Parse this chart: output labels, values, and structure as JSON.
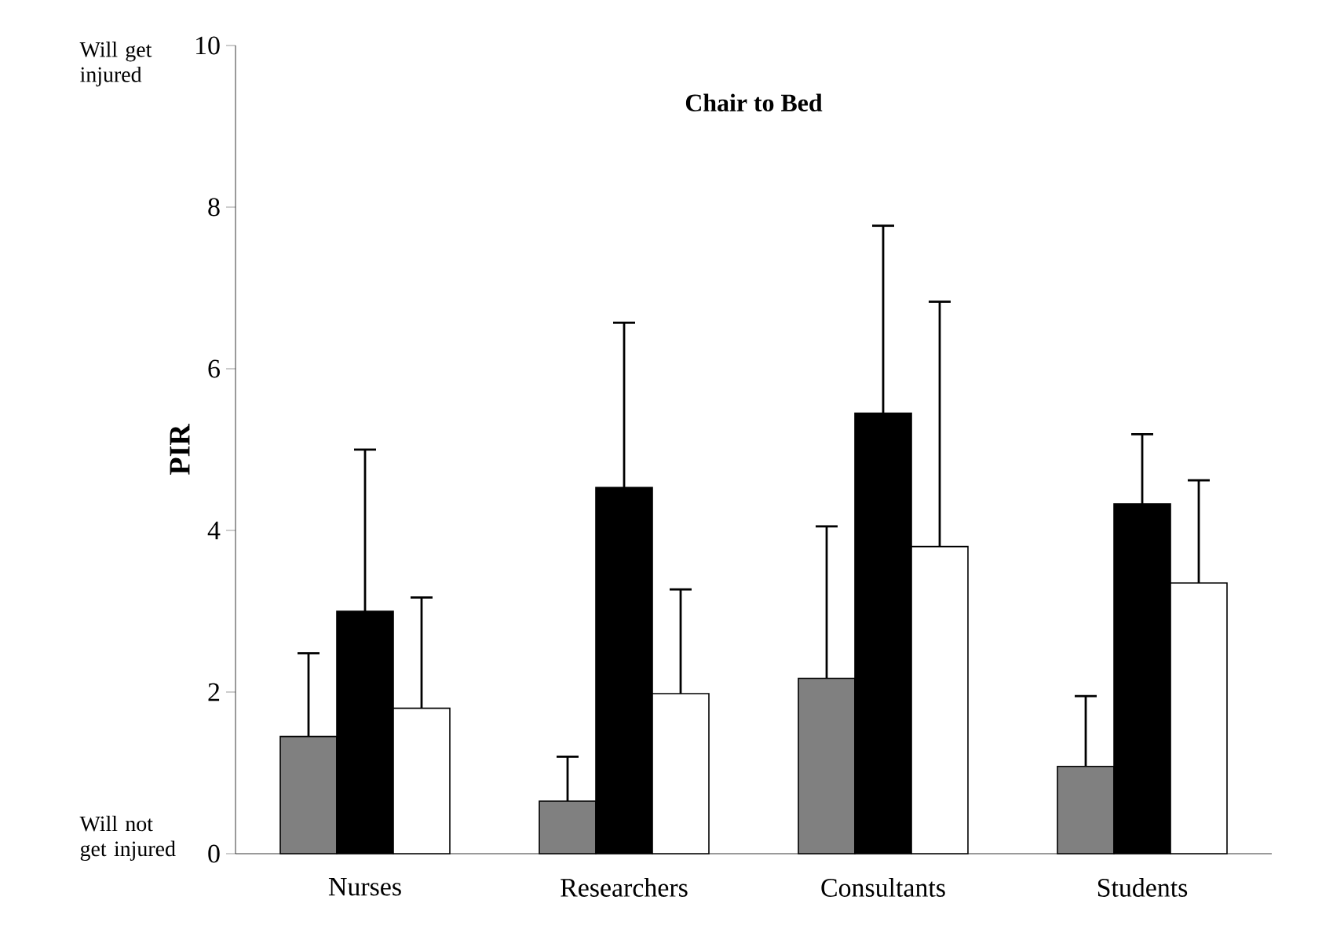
{
  "chart_data": {
    "type": "bar",
    "title": "Chair to Bed",
    "ylabel": "PIR",
    "categories": [
      "Nurses",
      "Researchers",
      "Consultants",
      "Students"
    ],
    "series": [
      {
        "color": "#808080",
        "values": [
          1.45,
          0.65,
          2.17,
          1.08
        ],
        "errors": [
          [
            1.45,
            2.48
          ],
          [
            0.65,
            1.2
          ],
          [
            2.17,
            4.05
          ],
          [
            1.08,
            1.95
          ]
        ]
      },
      {
        "color": "#000000",
        "values": [
          3.0,
          4.53,
          5.45,
          4.33
        ],
        "errors": [
          [
            3.0,
            5.0
          ],
          [
            4.53,
            6.57
          ],
          [
            5.45,
            7.77
          ],
          [
            4.33,
            5.19
          ]
        ]
      },
      {
        "color": "#ffffff",
        "values": [
          1.8,
          1.98,
          3.8,
          3.35
        ],
        "errors": [
          [
            1.8,
            3.17
          ],
          [
            1.98,
            3.27
          ],
          [
            3.8,
            6.83
          ],
          [
            3.35,
            4.62
          ]
        ]
      }
    ],
    "ylim": [
      0,
      10
    ],
    "yticks": [
      0,
      2,
      4,
      6,
      8,
      10
    ],
    "grid": false,
    "annotations": [
      "Will get injured",
      "Will not get injured"
    ]
  }
}
